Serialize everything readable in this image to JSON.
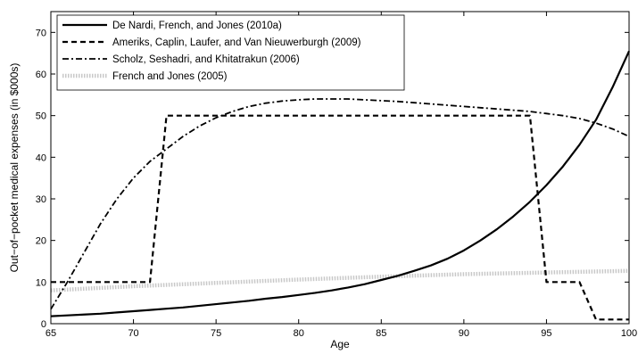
{
  "chart_data": {
    "type": "line",
    "xlabel": "Age",
    "ylabel": "Out−of−pocket medical expenses (in $000s)",
    "xlim": [
      65,
      100
    ],
    "ylim": [
      0,
      75
    ],
    "xticks": [
      65,
      70,
      75,
      80,
      85,
      90,
      95,
      100
    ],
    "yticks": [
      0,
      10,
      20,
      30,
      40,
      50,
      60,
      70
    ],
    "grid": false,
    "legend_position": "top-left",
    "series": [
      {
        "name": "De Nardi, French, and Jones (2010a)",
        "style": "solid",
        "color": "#000000",
        "x": [
          65,
          66,
          67,
          68,
          69,
          70,
          71,
          72,
          73,
          74,
          75,
          76,
          77,
          78,
          79,
          80,
          81,
          82,
          83,
          84,
          85,
          86,
          87,
          88,
          89,
          90,
          91,
          92,
          93,
          94,
          95,
          96,
          97,
          98,
          99,
          100
        ],
        "y": [
          1.8,
          2.0,
          2.2,
          2.4,
          2.7,
          3.0,
          3.3,
          3.6,
          3.9,
          4.3,
          4.7,
          5.1,
          5.5,
          6.0,
          6.4,
          6.9,
          7.4,
          8.0,
          8.7,
          9.5,
          10.5,
          11.5,
          12.7,
          14.0,
          15.6,
          17.6,
          20.0,
          22.7,
          25.8,
          29.3,
          33.3,
          37.8,
          43.0,
          49.0,
          56.8,
          65.5
        ]
      },
      {
        "name": "Ameriks, Caplin, Laufer, and Van Nieuwerburgh (2009)",
        "style": "dashed",
        "color": "#000000",
        "x": [
          65,
          71,
          72,
          94,
          95,
          97,
          98,
          100
        ],
        "y": [
          10,
          10,
          50,
          50,
          10,
          10,
          1,
          1
        ]
      },
      {
        "name": "Scholz, Seshadri, and Khitatrakun (2006)",
        "style": "dashdot",
        "color": "#000000",
        "x": [
          65,
          66,
          67,
          68,
          69,
          70,
          71,
          72,
          73,
          74,
          75,
          76,
          77,
          78,
          79,
          80,
          81,
          82,
          83,
          84,
          85,
          86,
          87,
          88,
          89,
          90,
          91,
          92,
          93,
          94,
          95,
          96,
          97,
          98,
          99,
          100
        ],
        "y": [
          3.5,
          10,
          17,
          24,
          30,
          35,
          39,
          42,
          45,
          47.5,
          49.5,
          51,
          52.2,
          53,
          53.5,
          53.8,
          54,
          54,
          54,
          53.8,
          53.6,
          53.4,
          53.1,
          52.8,
          52.5,
          52.2,
          51.9,
          51.6,
          51.3,
          51,
          50.5,
          50,
          49.3,
          48.2,
          46.8,
          45
        ]
      },
      {
        "name": "French and Jones (2005)",
        "style": "dotted",
        "color": "#c8c8c8",
        "x": [
          65,
          70,
          75,
          80,
          85,
          90,
          95,
          100
        ],
        "y": [
          8,
          9,
          9.8,
          10.6,
          11.3,
          11.9,
          12.3,
          12.7
        ]
      }
    ]
  }
}
